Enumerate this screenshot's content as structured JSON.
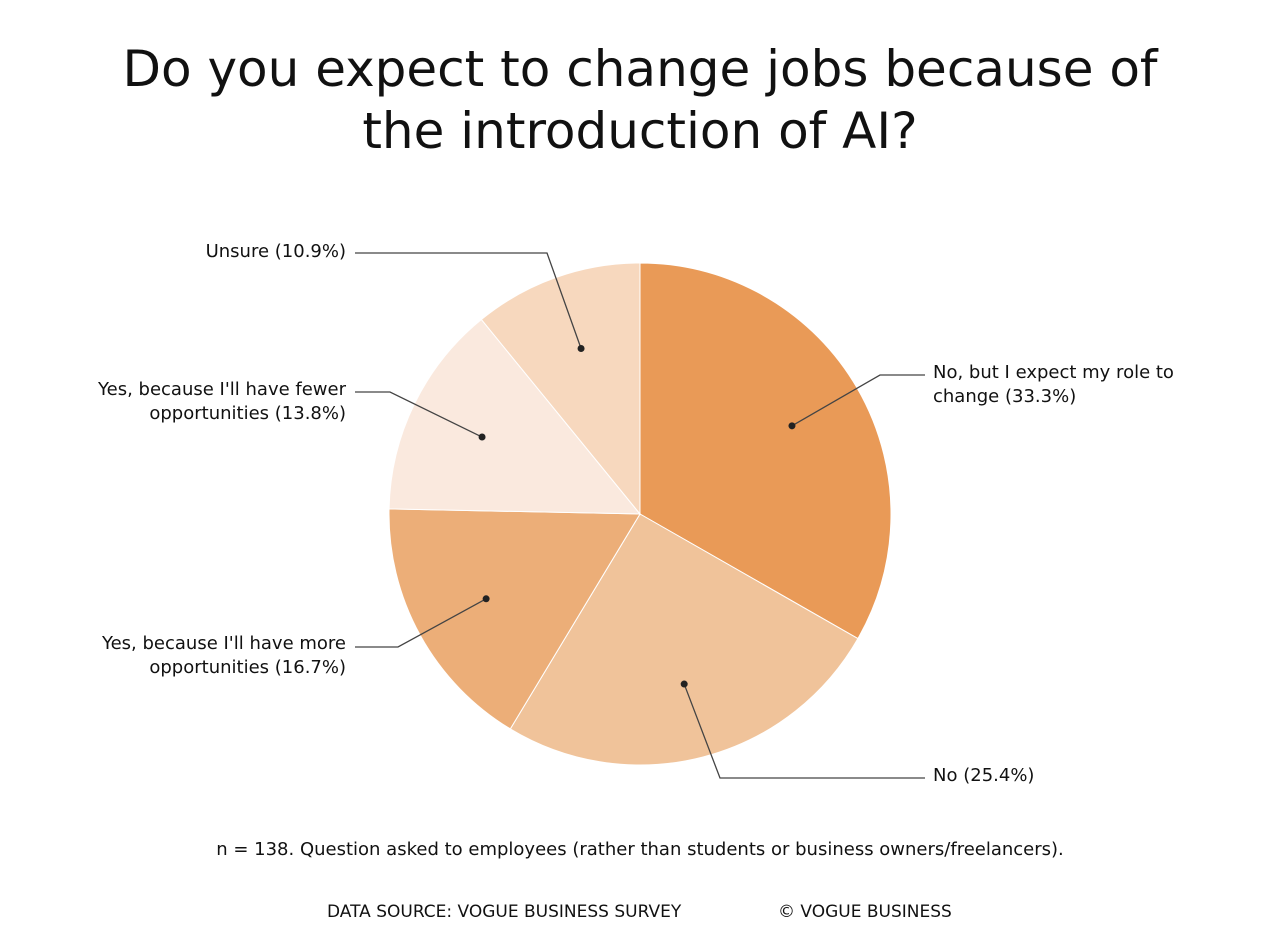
{
  "chart_data": {
    "type": "pie",
    "title": "Do you expect to change jobs because of the introduction of AI?",
    "categories": [
      "No, but I expect my role to change",
      "No",
      "Yes, because I'll have more opportunities",
      "Yes, because I'll have fewer opportunities",
      "Unsure"
    ],
    "values": [
      33.3,
      25.4,
      16.7,
      13.8,
      10.9
    ],
    "value_labels": [
      "(33.3%)",
      "(25.4%)",
      "(16.7%)",
      "(13.8%)",
      "(10.9%)"
    ],
    "colors": [
      "#e99a57",
      "#f0c39a",
      "#ecae78",
      "#fae9de",
      "#f7d8be"
    ],
    "note": "n = 138. Question asked to employees (rather than students or business owners/freelancers).",
    "source": "DATA SOURCE: VOGUE BUSINESS SURVEY",
    "credit": "© VOGUE BUSINESS"
  }
}
